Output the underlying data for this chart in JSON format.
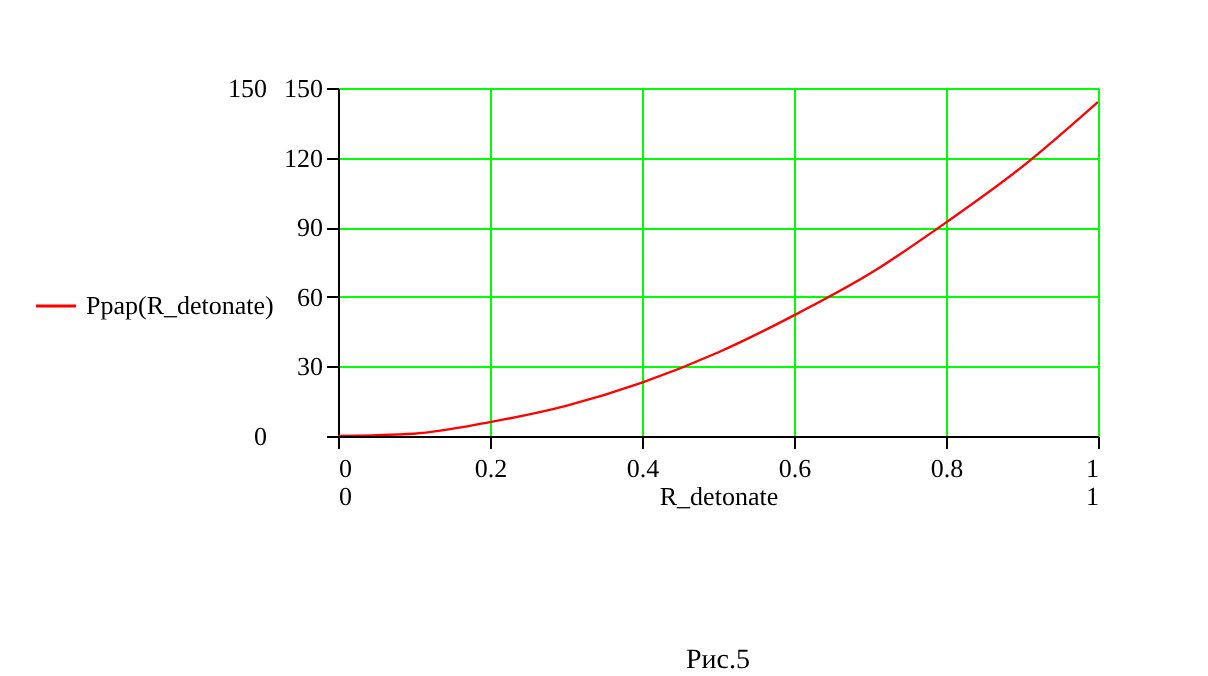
{
  "chart_data": {
    "type": "line",
    "xlabel": "R_detonate",
    "annotations": [
      "Рис.5"
    ],
    "x": [
      0,
      0.1,
      0.2,
      0.3,
      0.4,
      0.5,
      0.6,
      0.7,
      0.8,
      0.9,
      1
    ],
    "series": [
      {
        "name": "Ppap(R_detonate)",
        "color": "#ff0000",
        "values": [
          0,
          1,
          6,
          13,
          23,
          36,
          52,
          70,
          92,
          116,
          144
        ]
      }
    ],
    "xlim": [
      0,
      1
    ],
    "xticks": [
      0,
      0.2,
      0.4,
      0.6,
      0.8,
      1
    ],
    "ylim": [
      0,
      150
    ],
    "yticks": [
      {
        "value": 0,
        "label": null
      },
      30,
      60,
      90,
      120,
      150
    ],
    "x2lim": [
      0,
      1
    ],
    "x2ticks": [
      0,
      1
    ],
    "y2lim": [
      0,
      150
    ],
    "y2ticks": [
      0,
      150
    ],
    "grid": true,
    "legend": "left",
    "marker": "none",
    "line_style": "solid"
  }
}
